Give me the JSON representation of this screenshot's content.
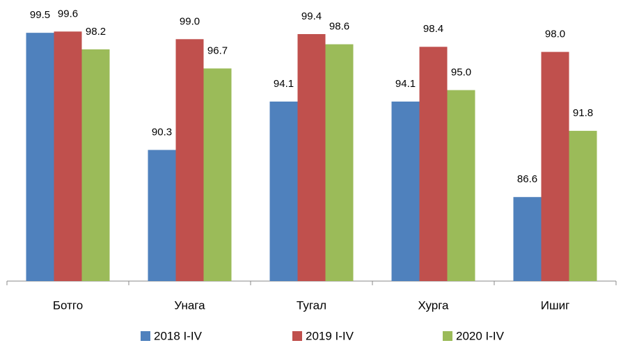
{
  "chart_data": {
    "type": "bar",
    "categories": [
      "Ботго",
      "Унага",
      "Тугал",
      "Хурга",
      "Ишиг"
    ],
    "series": [
      {
        "name": "2018 I-IV",
        "color": "#4f81bd",
        "values": [
          99.5,
          90.3,
          94.1,
          94.1,
          86.6
        ],
        "value_labels": [
          "99.5",
          "90.3",
          "94.1",
          "94.1",
          "86.6"
        ]
      },
      {
        "name": "2019 I-IV",
        "color": "#c0504d",
        "values": [
          99.6,
          99.0,
          99.4,
          98.4,
          98.0
        ],
        "value_labels": [
          "99.6",
          "99.0",
          "99.4",
          "98.4",
          "98.0"
        ]
      },
      {
        "name": "2020 I-IV",
        "color": "#9bbb59",
        "values": [
          98.2,
          96.7,
          98.6,
          95.0,
          91.8
        ],
        "value_labels": [
          "98.2",
          "96.7",
          "98.6",
          "95.0",
          "91.8"
        ]
      }
    ],
    "ylim": [
      80,
      100
    ],
    "legend": "bottom"
  }
}
